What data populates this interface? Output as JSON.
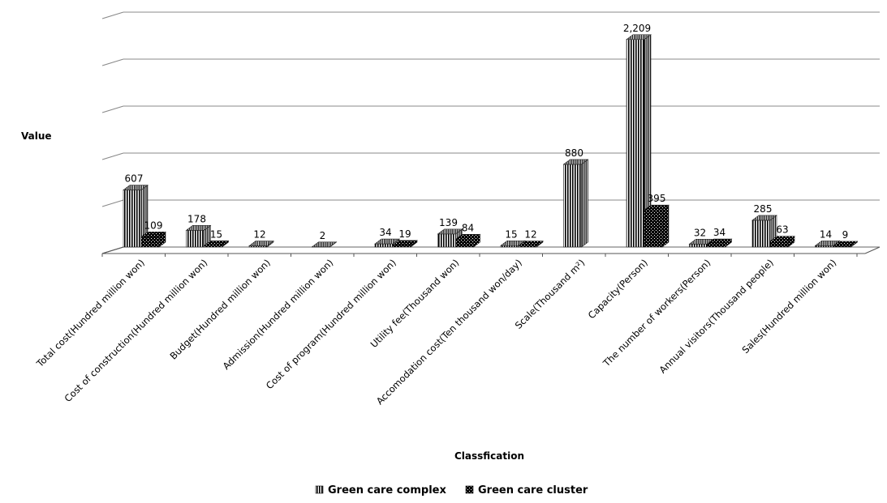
{
  "chart_data": {
    "type": "bar",
    "title": "",
    "xlabel": "Classfication",
    "ylabel": "Value",
    "ylim": [
      0,
      2500
    ],
    "gridlines": [
      0,
      500,
      1000,
      1500,
      2000,
      2500
    ],
    "grid": true,
    "legend_position": "bottom",
    "categories": [
      "Total cost(Hundred million won)",
      "Cost of construction(Hundred million won)",
      "Budget(Hundred million won)",
      "Admission(Hundred million won)",
      "Cost of program(Hundred million won)",
      "Utility fee(Thousand won)",
      "Accomodation cost(Ten thousand won/day)",
      "Scale(Thousand m²)",
      "Capacity(Person)",
      "The number of workers(Person)",
      "Annual visitors(Thousand people)",
      "Sales(Hundred million won)"
    ],
    "series": [
      {
        "name": "Green care complex",
        "pattern": "vertical-stripes",
        "values": [
          607,
          178,
          12,
          2,
          34,
          139,
          15,
          880,
          2209,
          32,
          285,
          14
        ],
        "labels": [
          "607",
          "178",
          "12",
          "2",
          "34",
          "139",
          "15",
          "880",
          "2,209",
          "32",
          "285",
          "14"
        ]
      },
      {
        "name": "Green care cluster",
        "pattern": "dots",
        "values": [
          109,
          15,
          null,
          null,
          19,
          84,
          12,
          null,
          395,
          34,
          63,
          9
        ],
        "labels": [
          "109",
          "15",
          null,
          null,
          "19",
          "84",
          "12",
          null,
          "395",
          "34",
          "63",
          "9"
        ]
      }
    ]
  }
}
